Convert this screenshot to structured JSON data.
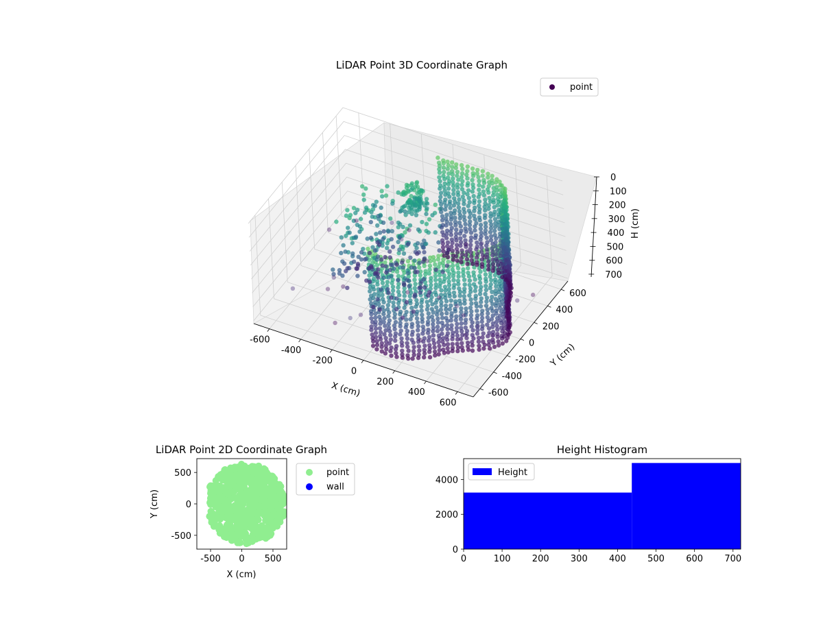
{
  "chart_data": [
    {
      "type": "scatter3d",
      "title": "LiDAR Point 3D Coordinate Graph",
      "xlabel": "X (cm)",
      "ylabel": "Y (cm)",
      "zlabel": "H (cm)",
      "xlim": [
        -700,
        700
      ],
      "ylim": [
        -700,
        700
      ],
      "zlim": [
        0,
        720
      ],
      "z_inverted": true,
      "x_ticks": [
        "-600",
        "-400",
        "-200",
        "0",
        "200",
        "400",
        "600"
      ],
      "y_ticks": [
        "-600",
        "-400",
        "-200",
        "0",
        "200",
        "400",
        "600"
      ],
      "z_ticks": [
        "0",
        "100",
        "200",
        "300",
        "400",
        "500",
        "600",
        "700"
      ],
      "legend": {
        "placement": "top-right",
        "entries": [
          {
            "label": "point",
            "color": "#440154"
          }
        ]
      },
      "colormap": "viridis",
      "grid": true,
      "series": [
        {
          "name": "point",
          "note_shape": "arc wall from about (-100,-500) through (600,0) to (300,500); vertical columns from H 0 to 700",
          "sampled_points": [
            {
              "x": -200,
              "y": -300,
              "h": 200
            },
            {
              "x": -300,
              "y": -100,
              "h": 300
            },
            {
              "x": -100,
              "y": 200,
              "h": 150
            },
            {
              "x": 100,
              "y": 300,
              "h": 100
            },
            {
              "x": -500,
              "y": -550,
              "h": 500
            },
            {
              "x": 100,
              "y": -650,
              "h": 600
            },
            {
              "x": 700,
              "y": 100,
              "h": 250
            }
          ]
        }
      ]
    },
    {
      "type": "scatter",
      "title": "LiDAR Point 2D Coordinate Graph",
      "xlabel": "X (cm)",
      "ylabel": "Y (cm)",
      "xlim": [
        -720,
        720
      ],
      "ylim": [
        -720,
        720
      ],
      "x_ticks": [
        "-500",
        "0",
        "500"
      ],
      "y_ticks": [
        "500",
        "0",
        "-500"
      ],
      "legend": {
        "placement": "outside-right",
        "entries": [
          {
            "label": "point",
            "color": "#90ee90"
          },
          {
            "label": "wall",
            "color": "#0000ff"
          }
        ]
      },
      "series": [
        {
          "name": "point",
          "color": "#90ee90",
          "shape": "filled disk of radius about 650 centered near (50, 0)"
        },
        {
          "name": "wall",
          "color": "#0000ff",
          "points": []
        }
      ]
    },
    {
      "type": "bar",
      "title": "Height Histogram",
      "xlim": [
        0,
        720
      ],
      "ylim": [
        0,
        5200
      ],
      "x_ticks": [
        "0",
        "100",
        "200",
        "300",
        "400",
        "500",
        "600",
        "700"
      ],
      "y_ticks": [
        "0",
        "2000",
        "4000"
      ],
      "legend": {
        "placement": "top-left",
        "entries": [
          {
            "label": "Height",
            "color": "#0000ff"
          }
        ]
      },
      "bins": [
        {
          "x0": 0,
          "x1": 437,
          "count": 3250
        },
        {
          "x0": 437,
          "x1": 720,
          "count": 4950
        }
      ],
      "color": "#0000ff"
    }
  ]
}
